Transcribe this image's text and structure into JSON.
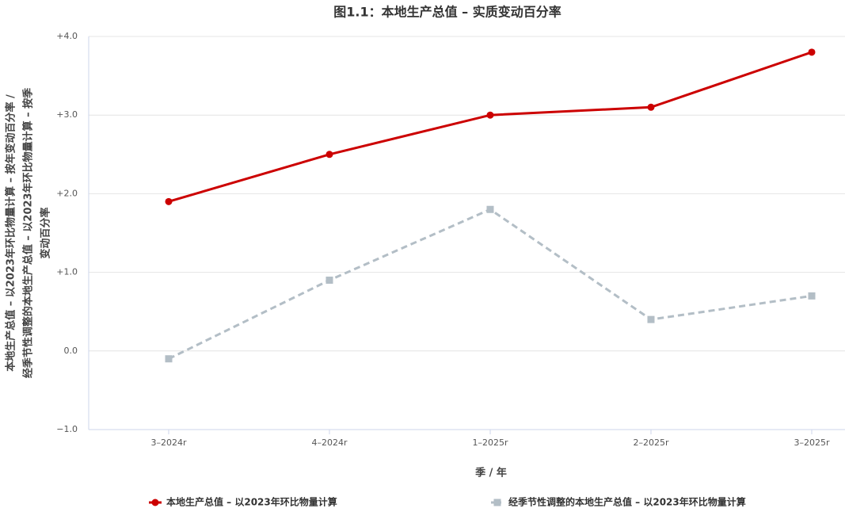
{
  "chart_data": {
    "type": "line",
    "title": "图1.1：本地生产总值 – 实质变动百分率",
    "y_label": [
      "本地生产总值 – 以2023年环比物量计算 – 按年变动百分率 /",
      "经季节性调整的本地生产总值 – 以2023年环比物量计算 – 按季",
      "变动百分率"
    ],
    "x_label": "季 / 年",
    "categories": [
      "3–2024r",
      "4–2024r",
      "1–2025r",
      "2–2025r",
      "3–2025r"
    ],
    "series": [
      {
        "name": "本地生产总值 – 以2023年环比物量计算",
        "color": "#cc0000",
        "dash": false,
        "marker": "circle",
        "values": [
          1.9,
          2.5,
          3.0,
          3.1,
          3.8
        ]
      },
      {
        "name": "经季节性调整的本地生产总值 – 以2023年环比物量计算",
        "color": "#b3bec6",
        "dash": true,
        "marker": "square",
        "values": [
          -0.1,
          0.9,
          1.8,
          0.4,
          0.7
        ]
      }
    ],
    "ylim": [
      -1.0,
      4.0
    ],
    "yticks": [
      {
        "value": -1.0,
        "label": "−1.0"
      },
      {
        "value": 0,
        "label": "0.0"
      },
      {
        "value": 1.0,
        "label": "+1.0"
      },
      {
        "value": 2.0,
        "label": "+2.0"
      },
      {
        "value": 3.0,
        "label": "+3.0"
      },
      {
        "value": 4.0,
        "label": "+4.0"
      }
    ],
    "grid": true
  }
}
